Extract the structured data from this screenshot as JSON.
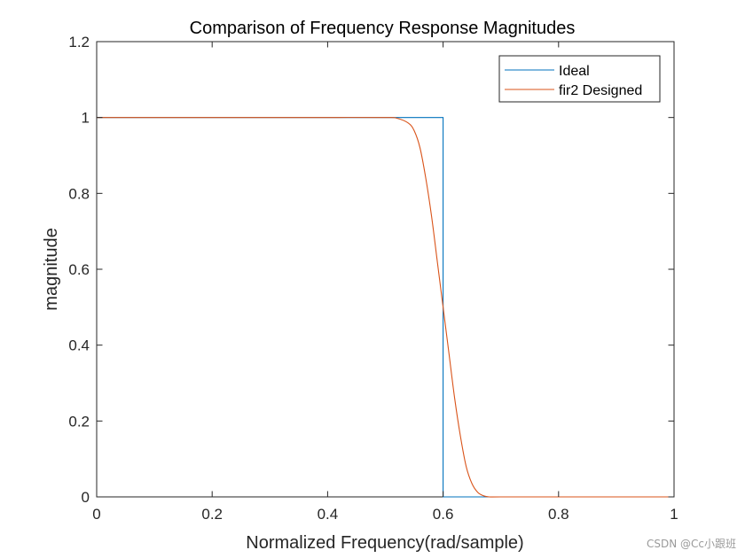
{
  "chart_data": {
    "type": "line",
    "title": "Comparison of Frequency Response Magnitudes",
    "xlabel": "Normalized Frequency(rad/sample)",
    "ylabel": "magnitude",
    "xlim": [
      0,
      1
    ],
    "ylim": [
      0,
      1.2
    ],
    "xticks": [
      0,
      0.2,
      0.4,
      0.6,
      0.8,
      1
    ],
    "xtick_labels": [
      "0",
      "0.2",
      "0.4",
      "0.6",
      "0.8",
      "1"
    ],
    "yticks": [
      0,
      0.2,
      0.4,
      0.6,
      0.8,
      1,
      1.2
    ],
    "ytick_labels": [
      "0",
      "0.2",
      "0.4",
      "0.6",
      "0.8",
      "1",
      "1.2"
    ],
    "grid": false,
    "legend_position": "top-right",
    "series": [
      {
        "name": "Ideal",
        "color": "#0072BD",
        "x": [
          0,
          0.6,
          0.6,
          1
        ],
        "y": [
          1,
          1,
          0,
          0
        ]
      },
      {
        "name": "fir2 Designed",
        "color": "#D95319",
        "x": [
          0,
          0.1,
          0.2,
          0.3,
          0.4,
          0.5,
          0.52,
          0.54,
          0.55,
          0.56,
          0.57,
          0.58,
          0.59,
          0.6,
          0.61,
          0.62,
          0.63,
          0.64,
          0.65,
          0.66,
          0.67,
          0.68,
          0.7,
          0.8,
          0.9,
          1
        ],
        "y": [
          1,
          1,
          1,
          1,
          1,
          1,
          0.998,
          0.985,
          0.965,
          0.92,
          0.84,
          0.74,
          0.62,
          0.5,
          0.38,
          0.26,
          0.16,
          0.08,
          0.035,
          0.012,
          0.003,
          0,
          0,
          0,
          0,
          0
        ]
      }
    ]
  },
  "watermark": "CSDN @Cc小跟班"
}
